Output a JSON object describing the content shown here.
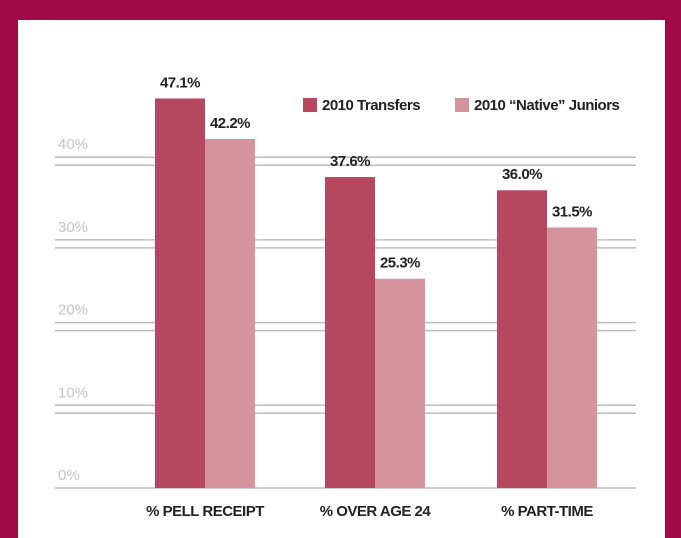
{
  "chart_data": {
    "type": "bar",
    "categories": [
      "% PELL RECEIPT",
      "% OVER AGE 24",
      "% PART-TIME"
    ],
    "series": [
      {
        "name": "2010 Transfers",
        "color": "#b5475f",
        "values": [
          47.1,
          37.6,
          36.0
        ],
        "value_labels": [
          "47.1%",
          "37.6%",
          "36.0%"
        ]
      },
      {
        "name": "2010 “Native” Juniors",
        "color": "#d5939c",
        "values": [
          42.2,
          25.3,
          31.5
        ],
        "value_labels": [
          "42.2%",
          "25.3%",
          "31.5%"
        ]
      }
    ],
    "ylim": [
      0,
      50
    ],
    "yticks": [
      {
        "value": 0,
        "label": "0%"
      },
      {
        "value": 10,
        "label": "10%"
      },
      {
        "value": 20,
        "label": "20%"
      },
      {
        "value": 30,
        "label": "30%"
      },
      {
        "value": 40,
        "label": "40%"
      }
    ],
    "grid": true,
    "legend": "top-right"
  }
}
